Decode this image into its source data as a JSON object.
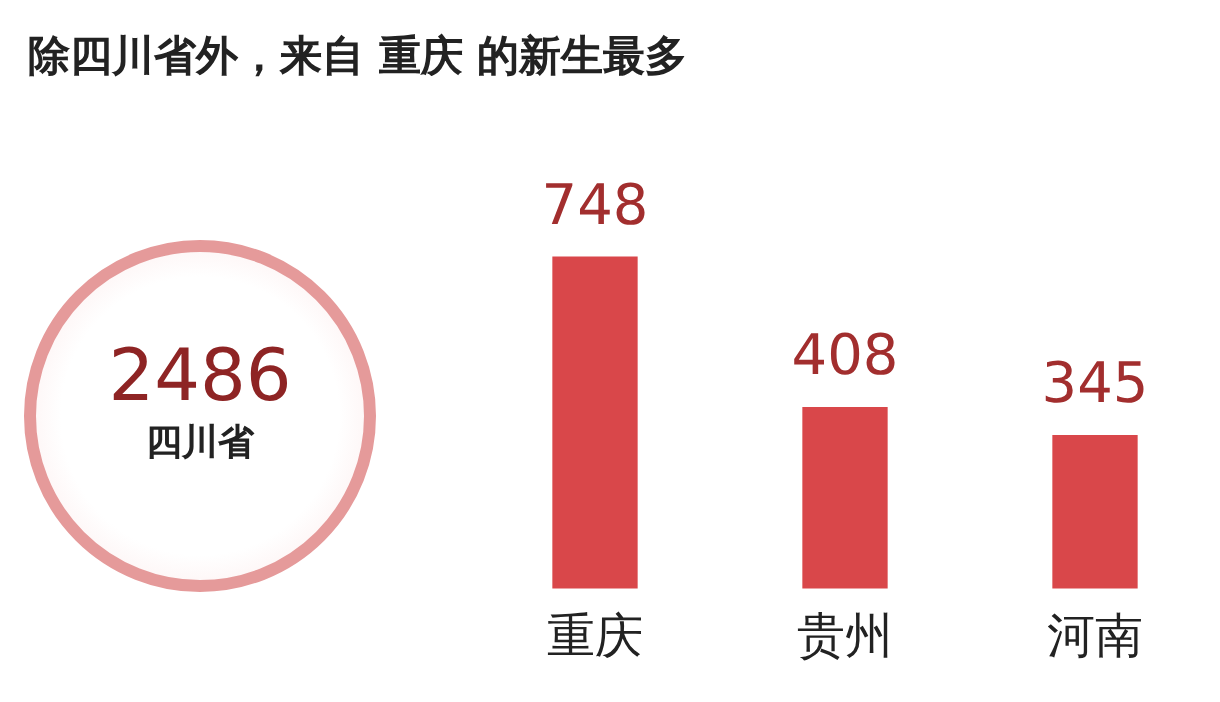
{
  "chart_data": [
    {
      "type": "other",
      "annotations": [
        "2486",
        "四川省"
      ]
    },
    {
      "type": "bar",
      "title": "除四川省外，来自 重庆 的新生最多",
      "categories": [
        "重庆",
        "贵州",
        "河南"
      ],
      "values": [
        748,
        408,
        345
      ],
      "color": "#d9474a",
      "data_labels": true
    }
  ]
}
